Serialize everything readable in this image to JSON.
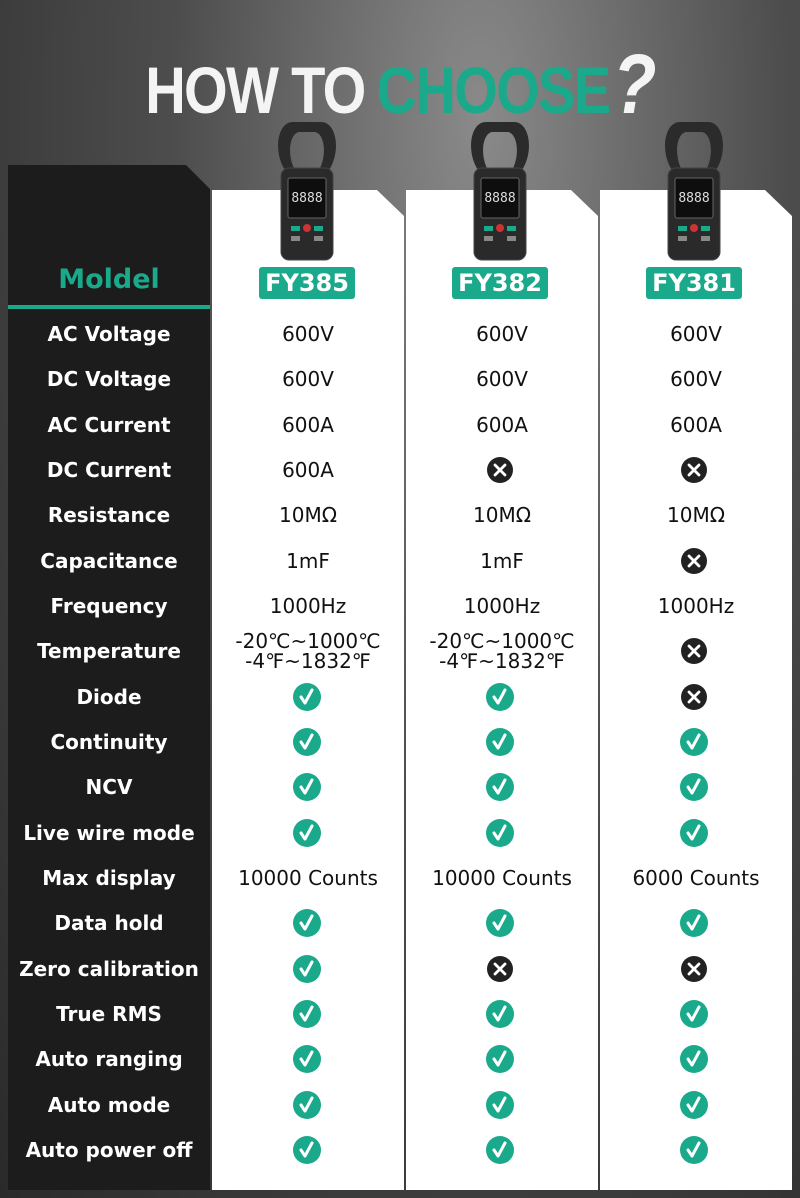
{
  "title": {
    "parts": [
      "HOW TO",
      "CHOOSE",
      "?"
    ]
  },
  "table": {
    "header": "Moldel",
    "models": [
      "FY385",
      "FY382",
      "FY381"
    ],
    "rows": [
      {
        "feature": "AC Voltage",
        "cells": [
          "600V",
          "600V",
          "600V"
        ]
      },
      {
        "feature": "DC Voltage",
        "cells": [
          "600V",
          "600V",
          "600V"
        ]
      },
      {
        "feature": "AC Current",
        "cells": [
          "600A",
          "600A",
          "600A"
        ]
      },
      {
        "feature": "DC Current",
        "cells": [
          "600A",
          false,
          false
        ]
      },
      {
        "feature": "Resistance",
        "cells": [
          "10MΩ",
          "10MΩ",
          "10MΩ"
        ]
      },
      {
        "feature": "Capacitance",
        "cells": [
          "1mF",
          "1mF",
          false
        ]
      },
      {
        "feature": "Frequency",
        "cells": [
          "1000Hz",
          "1000Hz",
          "1000Hz"
        ]
      },
      {
        "feature": "Temperature",
        "cells": [
          "-20℃~1000℃\n-4℉~1832℉",
          "-20℃~1000℃\n-4℉~1832℉",
          false
        ]
      },
      {
        "feature": "Diode",
        "cells": [
          true,
          true,
          false
        ]
      },
      {
        "feature": "Continuity",
        "cells": [
          true,
          true,
          true
        ]
      },
      {
        "feature": "NCV",
        "cells": [
          true,
          true,
          true
        ]
      },
      {
        "feature": "Live wire mode",
        "cells": [
          true,
          true,
          true
        ]
      },
      {
        "feature": "Max display",
        "cells": [
          "10000 Counts",
          "10000 Counts",
          "6000 Counts"
        ]
      },
      {
        "feature": "Data hold",
        "cells": [
          true,
          true,
          true
        ]
      },
      {
        "feature": "Zero calibration",
        "cells": [
          true,
          false,
          false
        ]
      },
      {
        "feature": "True RMS",
        "cells": [
          true,
          true,
          true
        ]
      },
      {
        "feature": "Auto ranging",
        "cells": [
          true,
          true,
          true
        ]
      },
      {
        "feature": "Auto mode",
        "cells": [
          true,
          true,
          true
        ]
      },
      {
        "feature": "Auto power off",
        "cells": [
          true,
          true,
          true
        ]
      }
    ]
  }
}
